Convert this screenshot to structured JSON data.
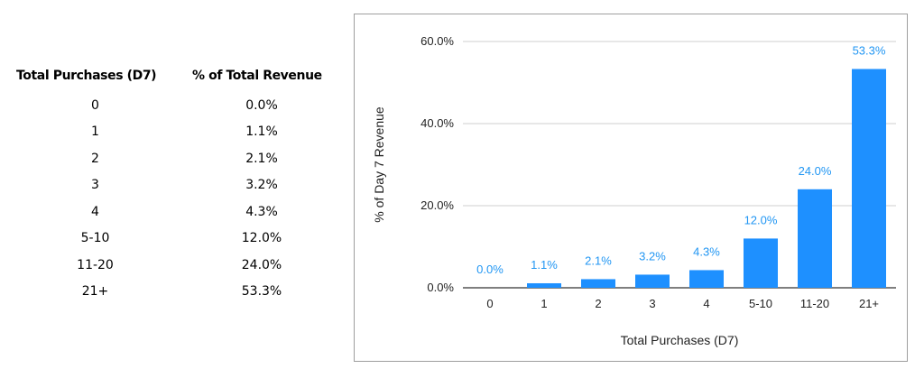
{
  "table": {
    "header_purchases": "Total Purchases (D7)",
    "header_revenue": "% of Total Revenue",
    "rows": [
      {
        "purchases": "0",
        "revenue": "0.0%"
      },
      {
        "purchases": "1",
        "revenue": "1.1%"
      },
      {
        "purchases": "2",
        "revenue": "2.1%"
      },
      {
        "purchases": "3",
        "revenue": "3.2%"
      },
      {
        "purchases": "4",
        "revenue": "4.3%"
      },
      {
        "purchases": "5-10",
        "revenue": "12.0%"
      },
      {
        "purchases": "11-20",
        "revenue": "24.0%"
      },
      {
        "purchases": "21+",
        "revenue": "53.3%"
      }
    ]
  },
  "chart_data": {
    "type": "bar",
    "categories": [
      "0",
      "1",
      "2",
      "3",
      "4",
      "5-10",
      "11-20",
      "21+"
    ],
    "values": [
      0.0,
      1.1,
      2.1,
      3.2,
      4.3,
      12.0,
      24.0,
      53.3
    ],
    "data_labels": [
      "0.0%",
      "1.1%",
      "2.1%",
      "3.2%",
      "4.3%",
      "12.0%",
      "24.0%",
      "53.3%"
    ],
    "title": "",
    "xlabel": "Total Purchases (D7)",
    "ylabel": "% of Day 7 Revenue",
    "ylim": [
      0,
      60
    ],
    "yticks": [
      0,
      20,
      40,
      60
    ],
    "ytick_labels": [
      "0.0%",
      "20.0%",
      "40.0%",
      "60.0%"
    ],
    "grid": true,
    "legend": "none",
    "bar_color": "#1e90ff",
    "label_color": "#2196f3"
  }
}
